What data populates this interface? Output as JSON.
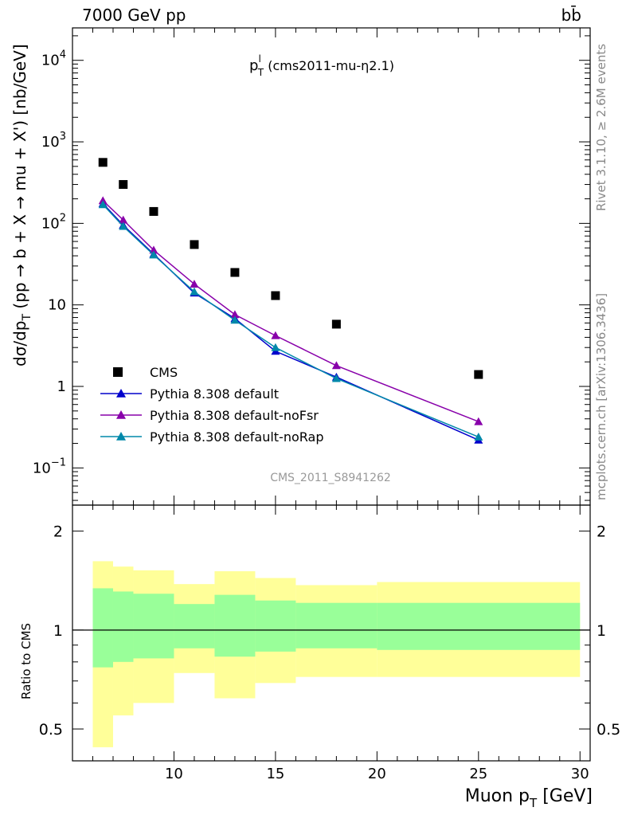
{
  "header": {
    "energy_label": "7000 GeV pp",
    "process_label": "bb̄",
    "right_side_note_top": "Rivet 3.1.10, ≥ 2.6M events",
    "right_side_note_bottom": "mcplots.cern.ch [arXiv:1306.3436]",
    "analysis_id": "CMS_2011_S8941262"
  },
  "chart_data": [
    {
      "type": "scatter",
      "panel": "main",
      "title": "p_T^l (cms2011-mu-η2.1)",
      "title_main": "p",
      "title_sup": "l",
      "title_sub": "T",
      "title_rest": " (cms2011-mu-η2.1)",
      "ylabel": "dσ/dp_T (pp → b + X → mu + X') [nb/GeV]",
      "ylabel_parts": [
        "dσ/dp",
        "T",
        " (pp → b + X → mu + X') [nb/GeV]"
      ],
      "yscale": "log",
      "ylim": [
        0.035,
        25000
      ],
      "xlim": [
        5,
        30.5
      ],
      "ytick_labels": [
        {
          "value": 0.1,
          "base": "10",
          "exp": "−1"
        },
        {
          "value": 1,
          "base": "1",
          "exp": ""
        },
        {
          "value": 10,
          "base": "10",
          "exp": ""
        },
        {
          "value": 100,
          "base": "10",
          "exp": "2"
        },
        {
          "value": 1000,
          "base": "10",
          "exp": "3"
        },
        {
          "value": 10000,
          "base": "10",
          "exp": "4"
        }
      ],
      "legend_position": "bottom-left",
      "series": [
        {
          "name": "CMS",
          "marker": "square",
          "color": "#000000",
          "x": [
            6.5,
            7.5,
            9,
            11,
            13,
            15,
            18,
            25
          ],
          "y": [
            560,
            300,
            140,
            55,
            25,
            13,
            5.8,
            1.4
          ]
        },
        {
          "name": "Pythia 8.308 default",
          "marker": "triangle",
          "color": "#0000cc",
          "x": [
            6.5,
            7.5,
            9,
            11,
            13,
            15,
            18,
            25
          ],
          "y": [
            175,
            95,
            42,
            14,
            6.8,
            2.7,
            1.3,
            0.22
          ]
        },
        {
          "name": "Pythia 8.308 default-noFsr",
          "marker": "triangle",
          "color": "#8800aa",
          "x": [
            6.5,
            7.5,
            9,
            11,
            13,
            15,
            18,
            25
          ],
          "y": [
            190,
            110,
            47,
            18,
            7.6,
            4.2,
            1.8,
            0.37
          ]
        },
        {
          "name": "Pythia 8.308 default-noRap",
          "marker": "triangle",
          "color": "#0088aa",
          "x": [
            6.5,
            7.5,
            9,
            11,
            13,
            15,
            18,
            25
          ],
          "y": [
            170,
            92,
            41,
            14.5,
            6.5,
            3.0,
            1.25,
            0.24
          ]
        }
      ]
    },
    {
      "type": "area",
      "panel": "ratio",
      "ylabel": "Ratio to CMS",
      "xlabel": "Muon p_T [GeV]",
      "xlabel_parts": [
        "Muon p",
        "T",
        " [GeV]"
      ],
      "yscale": "log",
      "ylim": [
        0.4,
        2.4
      ],
      "xlim": [
        5,
        30.5
      ],
      "xtick_labels": [
        10,
        15,
        20,
        25,
        30
      ],
      "ytick_labels": [
        0.5,
        1,
        2
      ],
      "reference_line": 1,
      "bins": [
        {
          "lo": 6,
          "hi": 7,
          "inner": [
            0.77,
            1.34
          ],
          "outer": [
            0.44,
            1.62
          ]
        },
        {
          "lo": 7,
          "hi": 8,
          "inner": [
            0.8,
            1.31
          ],
          "outer": [
            0.55,
            1.56
          ]
        },
        {
          "lo": 8,
          "hi": 10,
          "inner": [
            0.82,
            1.29
          ],
          "outer": [
            0.6,
            1.52
          ]
        },
        {
          "lo": 10,
          "hi": 12,
          "inner": [
            0.88,
            1.2
          ],
          "outer": [
            0.74,
            1.38
          ]
        },
        {
          "lo": 12,
          "hi": 14,
          "inner": [
            0.83,
            1.28
          ],
          "outer": [
            0.62,
            1.51
          ]
        },
        {
          "lo": 14,
          "hi": 16,
          "inner": [
            0.86,
            1.23
          ],
          "outer": [
            0.69,
            1.44
          ]
        },
        {
          "lo": 16,
          "hi": 20,
          "inner": [
            0.88,
            1.21
          ],
          "outer": [
            0.72,
            1.37
          ]
        },
        {
          "lo": 20,
          "hi": 30,
          "inner": [
            0.87,
            1.21
          ],
          "outer": [
            0.72,
            1.4
          ]
        }
      ]
    }
  ]
}
